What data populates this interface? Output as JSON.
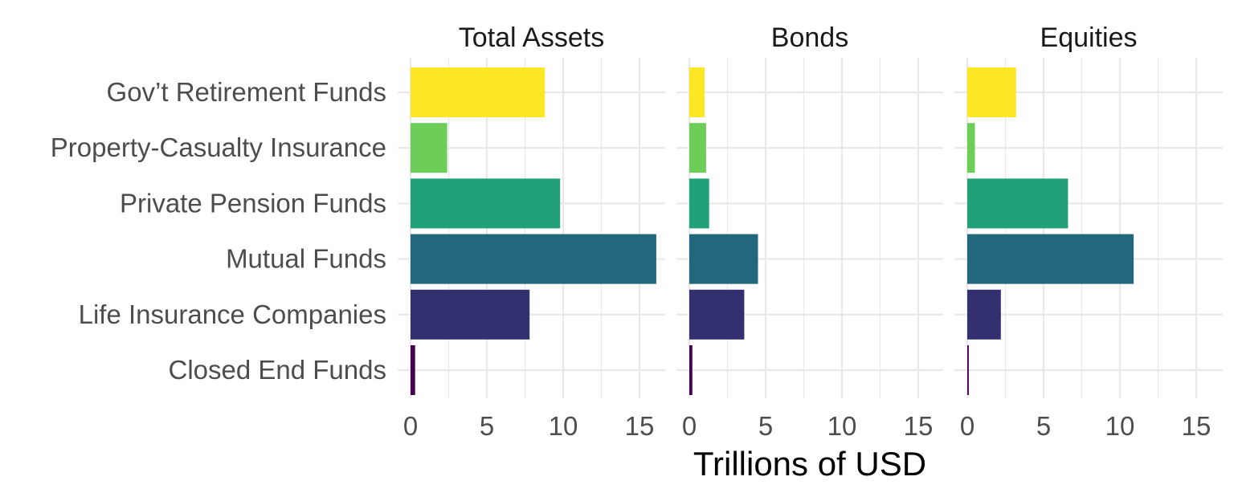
{
  "chart_data": {
    "type": "bar",
    "orientation": "horizontal",
    "xlabel": "Trillions of USD",
    "ylabel": "",
    "xlim": [
      0,
      16.5
    ],
    "x_ticks": [
      0,
      5,
      10,
      15
    ],
    "grid": true,
    "categories": [
      "Gov’t Retirement Funds",
      "Property-Casualty Insurance",
      "Private Pension Funds",
      "Mutual Funds",
      "Life Insurance Companies",
      "Closed End Funds"
    ],
    "category_colors": [
      "#FDE725",
      "#6CCE59",
      "#22A07A",
      "#22677B",
      "#333070",
      "#440154"
    ],
    "facets": [
      {
        "title": "Total Assets",
        "values": [
          8.8,
          2.4,
          9.8,
          16.1,
          7.8,
          0.3
        ]
      },
      {
        "title": "Bonds",
        "values": [
          1.0,
          1.1,
          1.3,
          4.5,
          3.6,
          0.2
        ]
      },
      {
        "title": "Equities",
        "values": [
          3.2,
          0.5,
          6.6,
          10.9,
          2.2,
          0.1
        ]
      }
    ]
  }
}
